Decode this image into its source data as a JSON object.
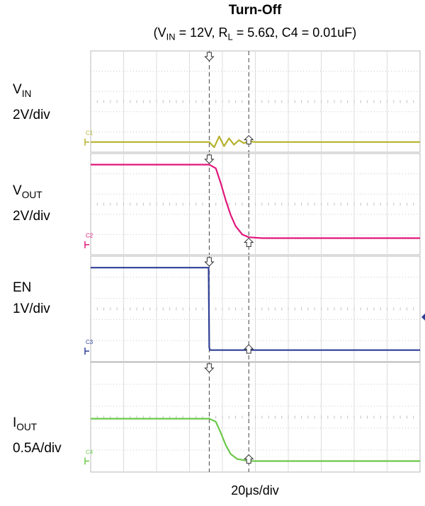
{
  "chart_data": {
    "type": "line",
    "title": "Turn-Off",
    "subtitle": {
      "text_parts": [
        "(V",
        "IN",
        " = 12V, R",
        "L",
        " = 5.6Ω, C4 = 0.01uF)"
      ]
    },
    "xlabel": "20μs/div",
    "grid": true,
    "x_unit": "div",
    "x_range_div": [
      0,
      10
    ],
    "cursors_div": [
      3.6,
      4.8
    ],
    "channels": [
      {
        "marker": "C1",
        "label": "V",
        "label_sub": "IN",
        "scale": "2V/div",
        "color": "#b5b12c",
        "description_points": [
          [
            0,
            0
          ],
          [
            3.6,
            0
          ],
          [
            3.75,
            -0.28
          ],
          [
            3.9,
            0.3
          ],
          [
            4.05,
            -0.22
          ],
          [
            4.2,
            0.2
          ],
          [
            4.35,
            -0.14
          ],
          [
            4.5,
            0.1
          ],
          [
            4.65,
            -0.06
          ],
          [
            4.8,
            0.04
          ],
          [
            5.0,
            0
          ],
          [
            10,
            0
          ]
        ]
      },
      {
        "marker": "C2",
        "label": "V",
        "label_sub": "OUT",
        "scale": "2V/div",
        "color": "#e0177b",
        "description_points": [
          [
            0,
            4.3
          ],
          [
            3.6,
            4.3
          ],
          [
            3.8,
            4.1
          ],
          [
            3.95,
            3.3
          ],
          [
            4.1,
            2.4
          ],
          [
            4.25,
            1.6
          ],
          [
            4.4,
            1.0
          ],
          [
            4.6,
            0.55
          ],
          [
            4.8,
            0.4
          ],
          [
            5.2,
            0.35
          ],
          [
            10,
            0.35
          ]
        ]
      },
      {
        "marker": "C3",
        "label": "EN",
        "label_sub": "",
        "scale": "1V/div",
        "color": "#2f3f95",
        "description_points": [
          [
            0,
            4.3
          ],
          [
            3.58,
            4.3
          ],
          [
            3.6,
            0.2
          ],
          [
            3.62,
            0.05
          ],
          [
            10,
            0.05
          ]
        ]
      },
      {
        "marker": "C4",
        "label": "I",
        "label_sub": "OUT",
        "scale": "0.5A/div",
        "color": "#6cc84a",
        "description_points": [
          [
            0,
            2.1
          ],
          [
            3.6,
            2.1
          ],
          [
            3.8,
            1.95
          ],
          [
            3.95,
            1.4
          ],
          [
            4.1,
            0.8
          ],
          [
            4.25,
            0.35
          ],
          [
            4.45,
            0.1
          ],
          [
            4.8,
            0.0
          ],
          [
            10,
            0.0
          ]
        ]
      }
    ]
  }
}
